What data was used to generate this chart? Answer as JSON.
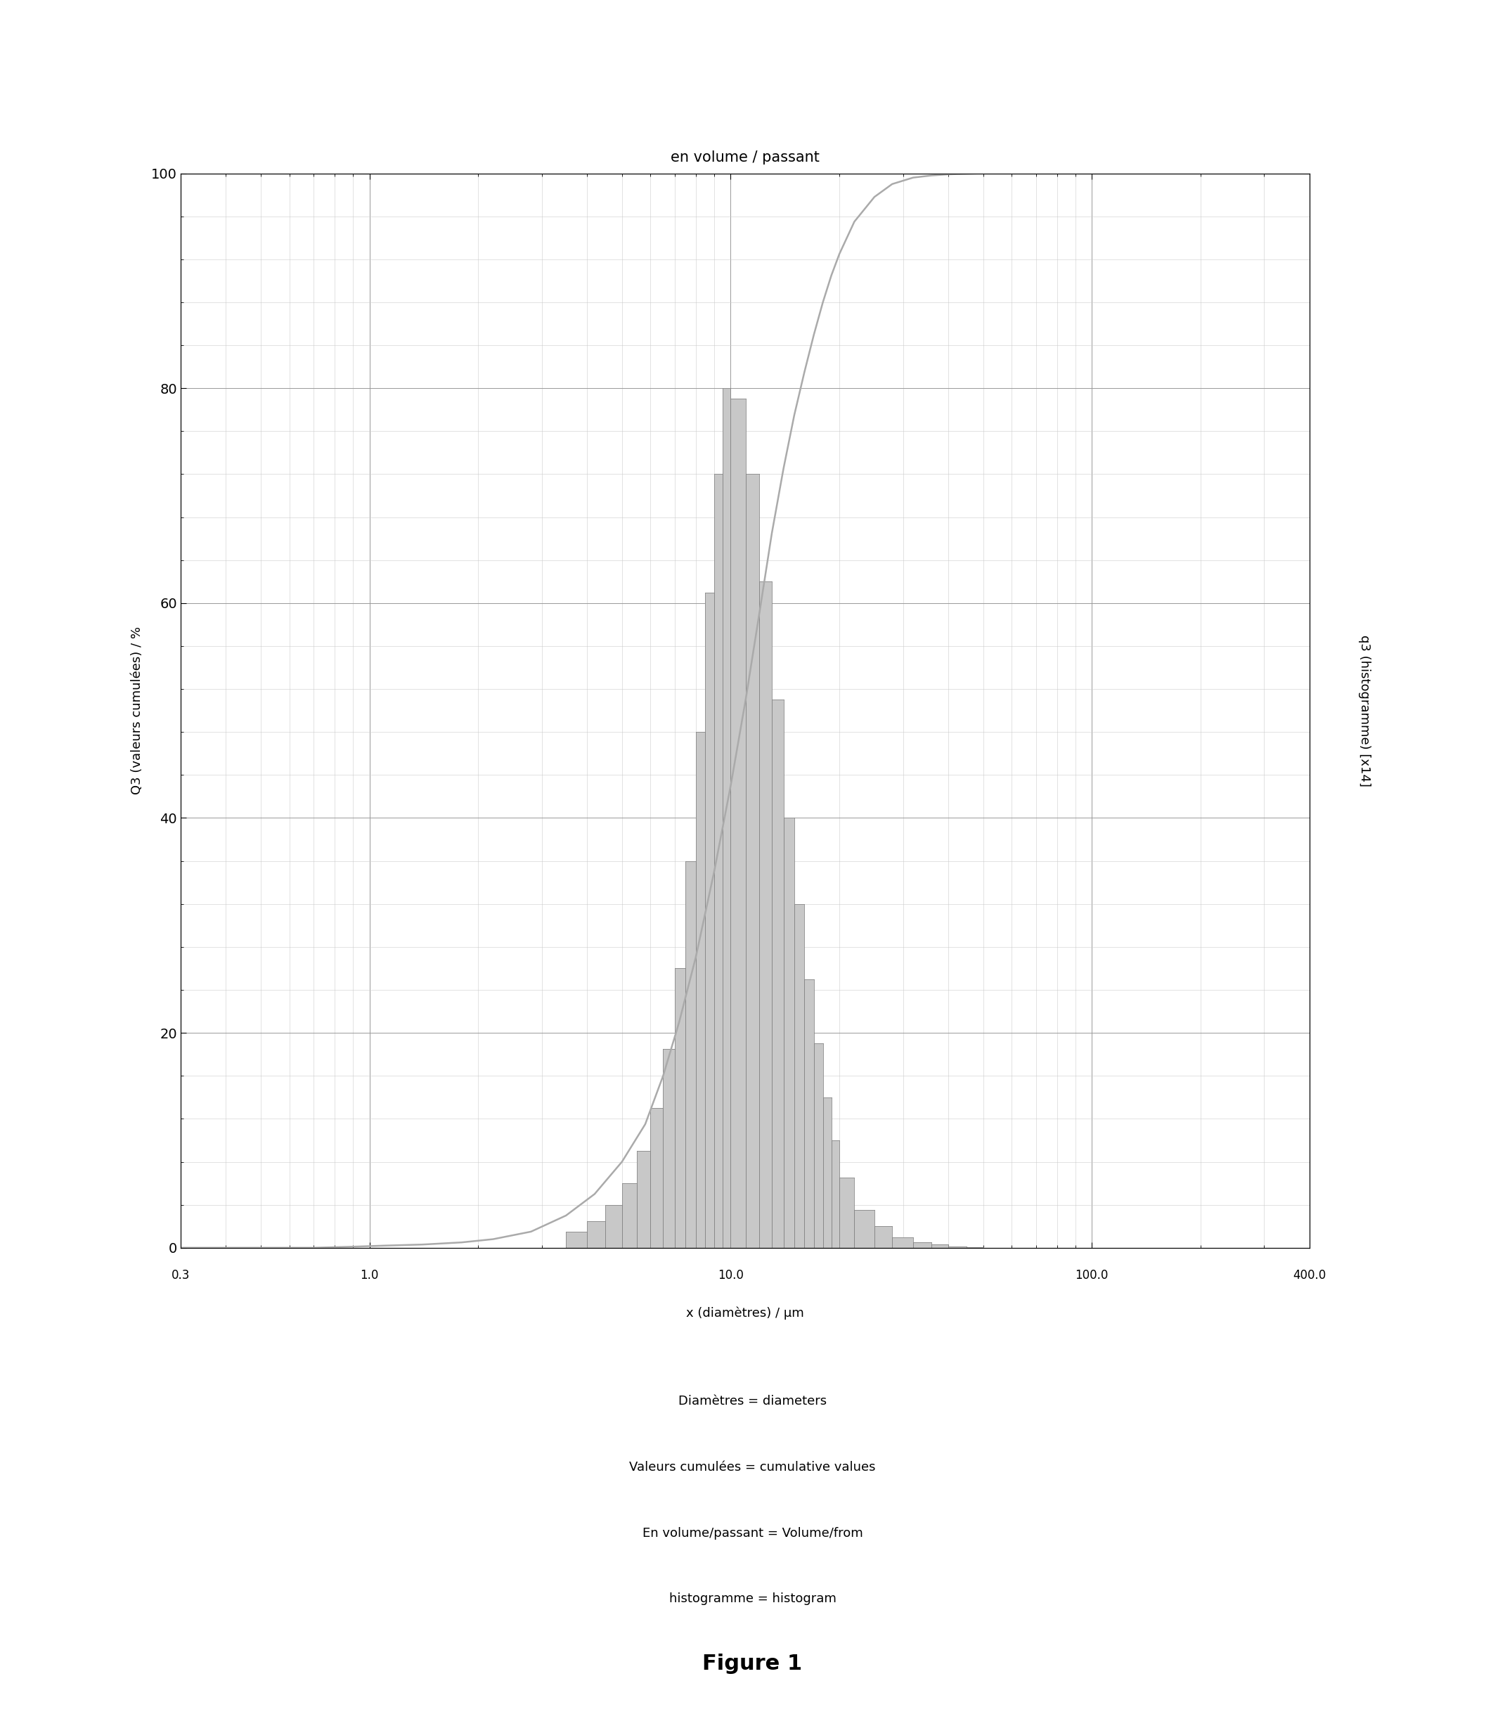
{
  "title": "en volume / passant",
  "xlabel": "x (diamètres) / µm",
  "ylabel_left": "Q3 (valeurs cumulées) / %",
  "ylabel_right": "q3 (histogramme) [x14]",
  "xmin": 0.3,
  "xmax": 400.0,
  "ymin": 0,
  "ymax": 100,
  "xtick_labels": [
    "0.3",
    "1.0",
    "10.0",
    "100.0",
    "400.0"
  ],
  "xtick_positions": [
    0.3,
    1.0,
    10.0,
    100.0,
    400.0
  ],
  "ytick_left": [
    0,
    20,
    40,
    60,
    80,
    100
  ],
  "background_color": "#ffffff",
  "grid_major_color": "#999999",
  "grid_minor_color": "#cccccc",
  "bar_color": "#c8c8c8",
  "bar_edge_color": "#888888",
  "line_color": "#aaaaaa",
  "annotation_lines": [
    "Diamètres = diameters",
    "Valeurs cumulées = cumulative values",
    "En volume/passant = Volume/from",
    "histogramme = histogram"
  ],
  "figure_label": "Figure 1",
  "cumulative_x": [
    0.3,
    0.5,
    0.7,
    0.9,
    1.1,
    1.4,
    1.8,
    2.2,
    2.8,
    3.5,
    4.2,
    5.0,
    5.8,
    6.5,
    7.2,
    8.0,
    9.0,
    10.0,
    11.0,
    12.0,
    13.0,
    14.0,
    15.0,
    16.0,
    17.0,
    18.0,
    19.0,
    20.0,
    22.0,
    25.0,
    28.0,
    32.0,
    36.0,
    40.0,
    50.0,
    63.0,
    80.0,
    100.0,
    150.0,
    200.0
  ],
  "cumulative_y": [
    0.0,
    0.0,
    0.0,
    0.1,
    0.2,
    0.3,
    0.5,
    0.8,
    1.5,
    3.0,
    5.0,
    8.0,
    11.5,
    16.0,
    21.0,
    27.0,
    35.0,
    43.0,
    51.0,
    59.0,
    66.5,
    72.5,
    77.5,
    81.5,
    85.0,
    88.0,
    90.5,
    92.5,
    95.5,
    97.8,
    99.0,
    99.6,
    99.8,
    99.9,
    100.0,
    100.0,
    100.0,
    100.0,
    100.0,
    100.0
  ],
  "hist_bins_left": [
    3.5,
    4.0,
    4.5,
    5.0,
    5.5,
    6.0,
    6.5,
    7.0,
    7.5,
    8.0,
    8.5,
    9.0,
    9.5,
    10.0,
    11.0,
    12.0,
    13.0,
    14.0,
    15.0,
    16.0,
    17.0,
    18.0,
    19.0,
    20.0,
    22.0,
    25.0,
    28.0,
    32.0,
    36.0,
    40.0,
    45.0
  ],
  "hist_bins_right": [
    4.0,
    4.5,
    5.0,
    5.5,
    6.0,
    6.5,
    7.0,
    7.5,
    8.0,
    8.5,
    9.0,
    9.5,
    10.0,
    11.0,
    12.0,
    13.0,
    14.0,
    15.0,
    16.0,
    17.0,
    18.0,
    19.0,
    20.0,
    22.0,
    25.0,
    28.0,
    32.0,
    36.0,
    40.0,
    45.0,
    50.0
  ],
  "hist_heights": [
    1.5,
    2.5,
    4.0,
    6.0,
    9.0,
    13.0,
    18.5,
    26.0,
    36.0,
    48.0,
    61.0,
    72.0,
    80.0,
    79.0,
    72.0,
    62.0,
    51.0,
    40.0,
    32.0,
    25.0,
    19.0,
    14.0,
    10.0,
    6.5,
    3.5,
    2.0,
    1.0,
    0.5,
    0.3,
    0.15,
    0.05
  ]
}
